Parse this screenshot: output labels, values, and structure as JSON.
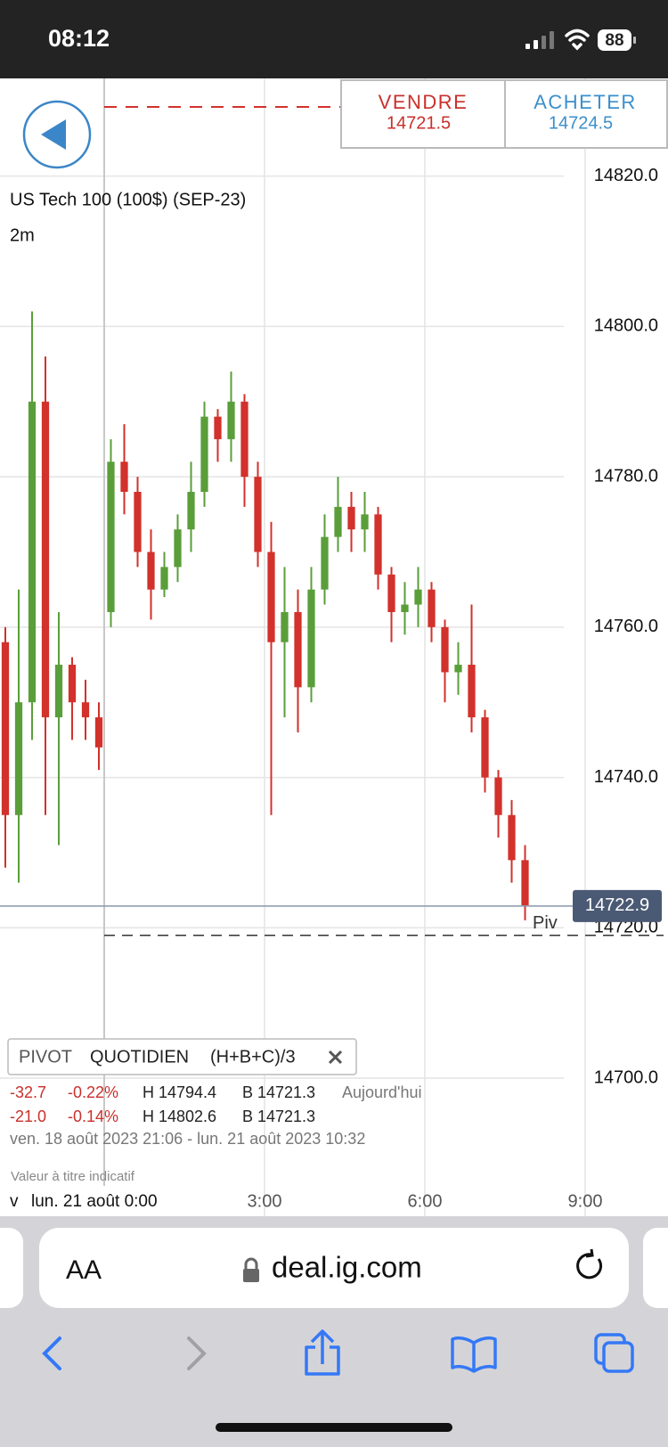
{
  "status_bar": {
    "time": "08:12",
    "battery": "88"
  },
  "trade": {
    "sell_label": "VENDRE",
    "sell_price": "14721.5",
    "buy_label": "ACHETER",
    "buy_price": "14724.5"
  },
  "chart_data": {
    "type": "candlestick",
    "title": "US Tech 100 (100$) (SEP-23)",
    "subtitle": "2m",
    "x": [
      -1.85,
      -1.6,
      -1.35,
      -1.1,
      -0.85,
      -0.6,
      -0.35,
      -0.1,
      0.125,
      0.375,
      0.625,
      0.875,
      1.125,
      1.375,
      1.625,
      1.875,
      2.125,
      2.375,
      2.625,
      2.875,
      3.125,
      3.375,
      3.625,
      3.875,
      4.125,
      4.375,
      4.625,
      4.875,
      5.125,
      5.375,
      5.625,
      5.875,
      6.125,
      6.375,
      6.625,
      6.875,
      7.125,
      7.375,
      7.625,
      7.875
    ],
    "open": [
      14758,
      14735,
      14750,
      14790,
      14748,
      14755,
      14750,
      14748,
      14762,
      14782,
      14778,
      14770,
      14765,
      14768,
      14773,
      14778,
      14788,
      14785,
      14790,
      14780,
      14770,
      14758,
      14762,
      14752,
      14765,
      14772,
      14776,
      14773,
      14775,
      14767,
      14762,
      14763,
      14765,
      14760,
      14754,
      14755,
      14748,
      14740,
      14735,
      14729
    ],
    "high": [
      14760,
      14765,
      14802,
      14796,
      14762,
      14756,
      14753,
      14750,
      14785,
      14787,
      14780,
      14773,
      14770,
      14775,
      14782,
      14790,
      14789,
      14794,
      14791,
      14782,
      14774,
      14768,
      14765,
      14768,
      14775,
      14780,
      14778,
      14778,
      14776,
      14768,
      14766,
      14768,
      14766,
      14761,
      14758,
      14763,
      14749,
      14741,
      14737,
      14731
    ],
    "low": [
      14728,
      14726,
      14745,
      14735,
      14731,
      14745,
      14745,
      14741,
      14760,
      14775,
      14768,
      14761,
      14764,
      14766,
      14770,
      14776,
      14782,
      14782,
      14776,
      14768,
      14735,
      14748,
      14746,
      14750,
      14763,
      14770,
      14770,
      14770,
      14765,
      14758,
      14759,
      14760,
      14758,
      14750,
      14751,
      14746,
      14738,
      14732,
      14726,
      14721
    ],
    "close": [
      14735,
      14750,
      14790,
      14748,
      14755,
      14750,
      14748,
      14744,
      14782,
      14778,
      14770,
      14765,
      14768,
      14773,
      14778,
      14788,
      14785,
      14790,
      14780,
      14770,
      14758,
      14762,
      14752,
      14765,
      14772,
      14776,
      14773,
      14775,
      14767,
      14762,
      14763,
      14765,
      14760,
      14754,
      14755,
      14748,
      14740,
      14735,
      14729,
      14723
    ],
    "up_color": "#5a9e3a",
    "down_color": "#d2312c",
    "xlim": [
      -1.95,
      10.55
    ],
    "ylim": [
      14684,
      14833
    ],
    "xticks": [
      {
        "value": 3,
        "label": "3:00"
      },
      {
        "value": 6,
        "label": "6:00"
      },
      {
        "value": 9,
        "label": "9:00"
      }
    ],
    "yticks": [
      {
        "value": 14700,
        "label": "14700.0"
      },
      {
        "value": 14720,
        "label": "14720.0"
      },
      {
        "value": 14740,
        "label": "14740.0"
      },
      {
        "value": 14760,
        "label": "14760.0"
      },
      {
        "value": 14780,
        "label": "14780.0"
      },
      {
        "value": 14800,
        "label": "14800.0"
      },
      {
        "value": 14820,
        "label": "14820.0"
      }
    ],
    "grid": true,
    "session_start": 0,
    "last_price": {
      "value": 14722.9,
      "label": "14722.9"
    },
    "pivot": {
      "value": 14719,
      "label": "Piv"
    }
  },
  "pivot_info": {
    "name": "PIVOT",
    "period": "QUOTIDIEN",
    "formula": "(H+B+C)/3"
  },
  "stats": [
    {
      "change": "-32.7",
      "percent": "-0.22%",
      "high": "H 14794.4",
      "low": "B 14721.3",
      "period": "Aujourd'hui"
    },
    {
      "change": "-21.0",
      "percent": "-0.14%",
      "high": "H 14802.6",
      "low": "B 14721.3"
    }
  ],
  "range": "ven. 18 août 2023 21:06 - lun. 21 août 2023 10:32",
  "disclaimer": "Valeur à titre indicatif",
  "cursor": {
    "marker": "v",
    "label": "lun. 21 août 0:00"
  },
  "browser": {
    "text_size": "AA",
    "url": "deal.ig.com"
  }
}
